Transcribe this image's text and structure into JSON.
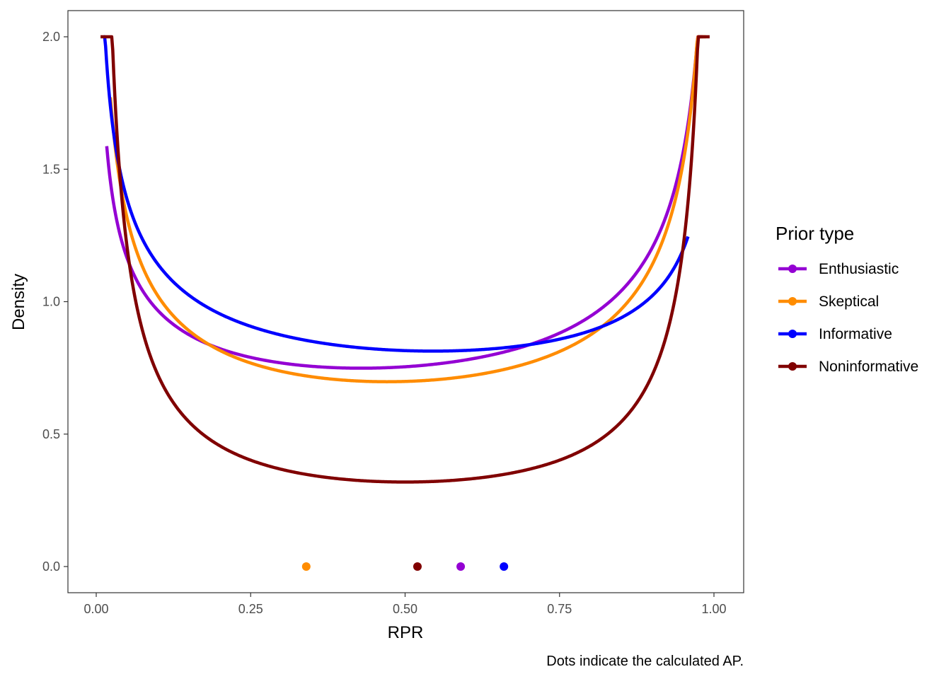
{
  "chart_data": {
    "type": "line",
    "title": "",
    "xlabel": "RPR",
    "ylabel": "Density",
    "xlim": [
      0,
      1
    ],
    "ylim": [
      0,
      2
    ],
    "x_ticks": [
      "0.00",
      "0.25",
      "0.50",
      "0.75",
      "1.00"
    ],
    "y_ticks": [
      "0.0",
      "0.5",
      "1.0",
      "1.5",
      "2.0"
    ],
    "grid": false,
    "legend": {
      "title": "Prior type",
      "position": "right",
      "entries": [
        "Enthusiastic",
        "Skeptical",
        "Informative",
        "Noninformative"
      ]
    },
    "caption": "Dots indicate the calculated AP.",
    "series": [
      {
        "name": "Enthusiastic",
        "color": "#9400d3",
        "shape": "beta",
        "a": 0.7,
        "b": 0.6,
        "x_range": [
          0.017,
          0.982
        ],
        "ap": 0.59
      },
      {
        "name": "Skeptical",
        "color": "#ff8c00",
        "shape": "beta",
        "a": 0.6,
        "b": 0.55,
        "x_range": [
          0.023,
          0.987
        ],
        "ap": 0.34
      },
      {
        "name": "Informative",
        "color": "#0000ff",
        "shape": "beta",
        "a": 0.7,
        "b": 0.75,
        "x_range": [
          0.012,
          0.958
        ],
        "ap": 0.66
      },
      {
        "name": "Noninformative",
        "color": "#800000",
        "shape": "beta",
        "a": 0.2,
        "b": 0.2,
        "x_range": [
          0.007,
          0.993
        ],
        "ap": 0.52
      }
    ]
  }
}
